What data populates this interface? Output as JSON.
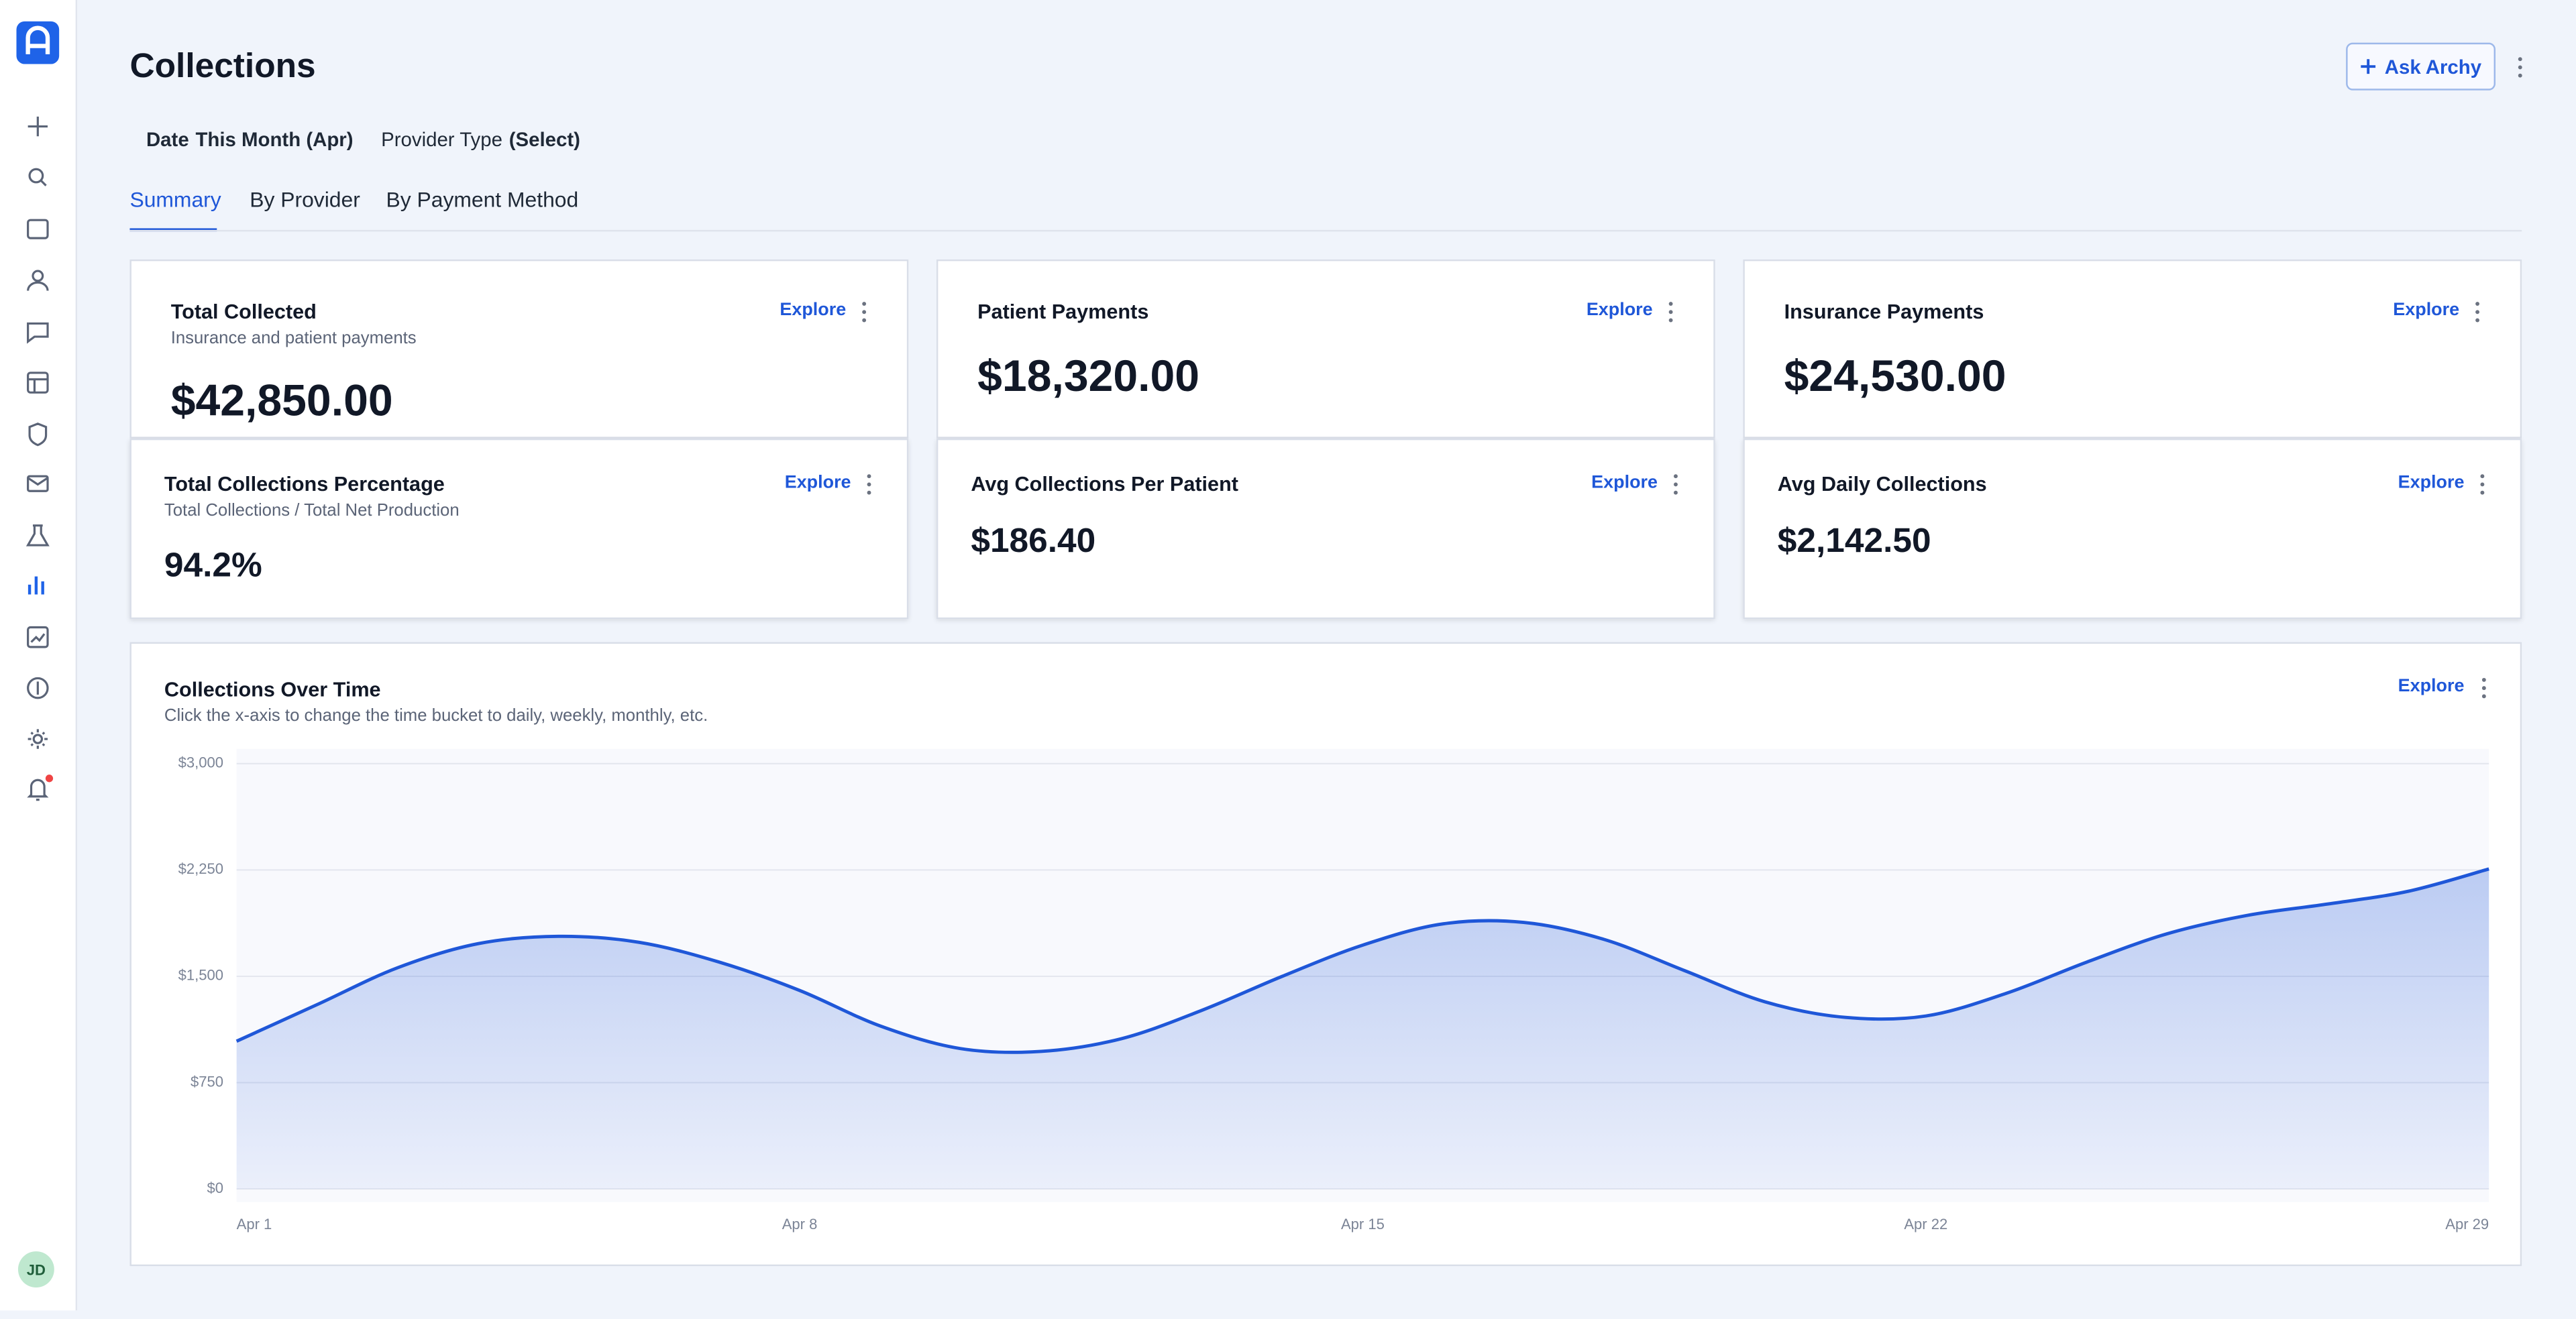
{
  "sidebar": {
    "avatar": "JD"
  },
  "header": {
    "title": "Collections",
    "button": "Ask Archy"
  },
  "filters": [
    {
      "label": "Date",
      "value": "This Month (Apr)"
    },
    {
      "label": "Provider Type",
      "value": "(Select)"
    }
  ],
  "tabs": [
    "Summary",
    "By Provider",
    "By Payment Method"
  ],
  "cards": [
    {
      "title": "Total Collected",
      "subtitle": "Insurance and patient payments",
      "value": "$42,850.00",
      "action": "Explore"
    },
    {
      "title": "Patient Payments",
      "value": "$18,320.00",
      "action": "Explore"
    },
    {
      "title": "Insurance Payments",
      "value": "$24,530.00",
      "action": "Explore"
    },
    {
      "title": "Total Collections Percentage",
      "subtitle": "Total Collections / Total Net Production",
      "value": "94.2%",
      "action": "Explore"
    },
    {
      "title": "Avg Collections Per Patient",
      "value": "$186.40",
      "action": "Explore"
    },
    {
      "title": "Avg Daily Collections",
      "value": "$2,142.50",
      "action": "Explore"
    }
  ],
  "chart_card": {
    "action": "Explore"
  },
  "chart_data": {
    "type": "area",
    "title": "Collections Over Time",
    "subtitle": "Click the x-axis to change the time bucket to daily, weekly, monthly, etc.",
    "categories": [
      "Apr 1",
      null,
      null,
      null,
      null,
      null,
      null,
      "Apr 8",
      null,
      null,
      null,
      null,
      null,
      null,
      "Apr 15",
      null,
      null,
      null,
      null,
      null,
      null,
      "Apr 22",
      null,
      null,
      null,
      null,
      null,
      null,
      "Apr 29"
    ],
    "series": [
      {
        "name": "Collections",
        "color": "#1f57d8",
        "values": [
          1042,
          1300,
          1560,
          1730,
          1782,
          1740,
          1600,
          1400,
          1150,
          990,
          970,
          1060,
          1260,
          1500,
          1720,
          1870,
          1880,
          1760,
          1540,
          1320,
          1210,
          1220,
          1380,
          1600,
          1800,
          1930,
          2010,
          2100,
          2257
        ]
      }
    ],
    "ylim": [
      0,
      3000
    ],
    "yticks": [
      {
        "value": 0,
        "label": "$0"
      },
      {
        "value": 750,
        "label": "$750"
      },
      {
        "value": 1500,
        "label": "$1,500"
      },
      {
        "value": 2250,
        "label": "$2,250"
      },
      {
        "value": 3000,
        "label": "$3,000"
      }
    ],
    "grid": true
  }
}
